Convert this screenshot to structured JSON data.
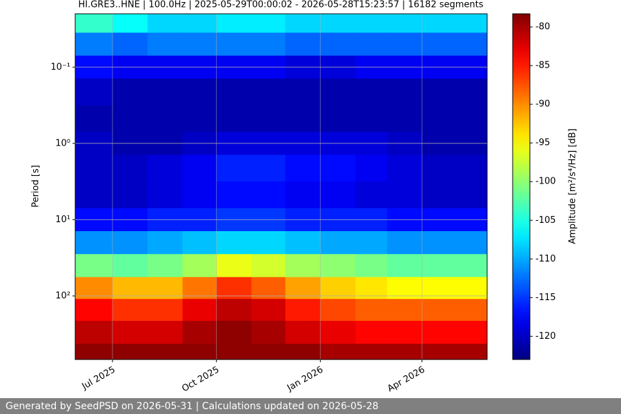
{
  "chart_data": {
    "type": "heatmap",
    "title": "HI.GRE3..HNE | 100.0Hz | 2025-05-29T00:00:02 - 2026-05-28T15:23:57 | 16182 segments",
    "ylabel": "Period [s]",
    "colorbar_label": "Amplitude [m²/s⁴/Hz] [dB]",
    "footer": "Generated by SeedPSD on 2026-05-31 | Calculations updated on 2026-05-28",
    "colormap": "jet",
    "log_y": true,
    "inverted_y": true,
    "grid": true,
    "xlim": [
      "2025-05-29T00:00:02",
      "2026-05-28T15:23:57"
    ],
    "xticks": [
      {
        "value": "2025-07",
        "label": "Jul 2025"
      },
      {
        "value": "2025-10",
        "label": "Oct 2025"
      },
      {
        "value": "2026-01",
        "label": "Jan 2026"
      },
      {
        "value": "2026-04",
        "label": "Apr 2026"
      }
    ],
    "ylim": [
      0.02,
      681
    ],
    "yticks": [
      {
        "value": 0.1,
        "label": "10⁻¹"
      },
      {
        "value": 1,
        "label": "10⁰"
      },
      {
        "value": 10,
        "label": "10¹"
      },
      {
        "value": 100,
        "label": "10²"
      }
    ],
    "clim": [
      -123,
      -78.3
    ],
    "cticks": [
      -80,
      -85,
      -90,
      -95,
      -100,
      -105,
      -110,
      -115,
      -120
    ],
    "x": [
      "2025-06",
      "2025-07",
      "2025-08",
      "2025-09",
      "2025-10",
      "2025-11",
      "2025-12",
      "2026-01",
      "2026-02",
      "2026-03",
      "2026-04",
      "2026-05"
    ],
    "periods": [
      0.025,
      0.05,
      0.1,
      0.2,
      0.5,
      1,
      2,
      5,
      10,
      20,
      40,
      80,
      150,
      300,
      600
    ],
    "values": [
      [
        -104,
        -106,
        -108,
        -108,
        -107,
        -107,
        -108,
        -108,
        -108,
        -108,
        -108,
        -108
      ],
      [
        -112,
        -113,
        -112,
        -112,
        -112,
        -112,
        -113,
        -113,
        -113,
        -113,
        -113,
        -113
      ],
      [
        -117,
        -118,
        -118,
        -118,
        -118,
        -118,
        -119,
        -119,
        -118,
        -118,
        -118,
        -118
      ],
      [
        -120,
        -121,
        -121,
        -121,
        -121,
        -121,
        -121,
        -121,
        -121,
        -121,
        -121,
        -121
      ],
      [
        -121,
        -121,
        -121,
        -121,
        -121,
        -121,
        -121,
        -121,
        -121,
        -121,
        -121,
        -121
      ],
      [
        -120,
        -121,
        -121,
        -120,
        -119,
        -119,
        -119,
        -119,
        -119,
        -120,
        -121,
        -121
      ],
      [
        -120,
        -120,
        -119,
        -118,
        -116,
        -116,
        -117,
        -117,
        -118,
        -119,
        -120,
        -120
      ],
      [
        -120,
        -120,
        -119,
        -118,
        -117,
        -117,
        -118,
        -118,
        -119,
        -119,
        -120,
        -120
      ],
      [
        -117,
        -117,
        -116,
        -116,
        -115,
        -115,
        -116,
        -116,
        -116,
        -117,
        -117,
        -117
      ],
      [
        -111,
        -111,
        -110,
        -109,
        -108,
        -108,
        -109,
        -110,
        -110,
        -111,
        -111,
        -111
      ],
      [
        -101,
        -102,
        -101,
        -99,
        -96,
        -97,
        -99,
        -100,
        -101,
        -102,
        -102,
        -102
      ],
      [
        -90,
        -92,
        -92,
        -89,
        -86,
        -88,
        -91,
        -93,
        -94,
        -95,
        -95,
        -95
      ],
      [
        -84,
        -86,
        -86,
        -83,
        -81,
        -82,
        -85,
        -87,
        -88,
        -88,
        -88,
        -88
      ],
      [
        -81,
        -82,
        -82,
        -80,
        -79,
        -80,
        -82,
        -83,
        -84,
        -84,
        -84,
        -84
      ],
      [
        -79,
        -79,
        -79,
        -79,
        -79,
        -79,
        -79,
        -80,
        -80,
        -80,
        -80,
        -80
      ]
    ]
  }
}
